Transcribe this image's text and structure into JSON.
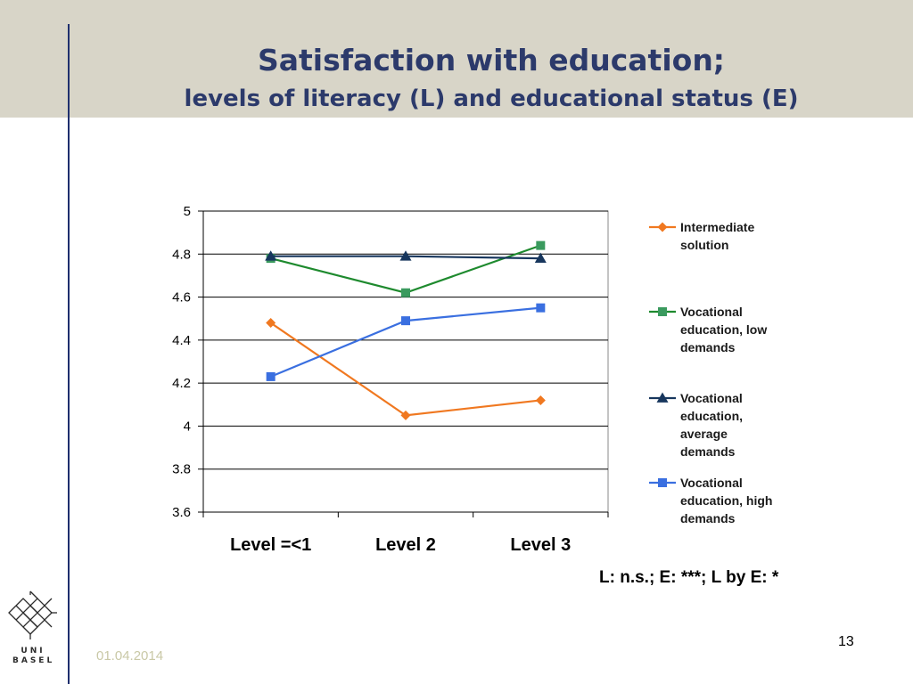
{
  "slide": {
    "title": "Satisfaction with education;",
    "subtitle": "levels of literacy (L) and educational status (E)",
    "stats_note": "L: n.s.; E: ***; L by E: *",
    "date": "01.04.2014",
    "page_number": "13",
    "logo": {
      "line1": "UNI",
      "line2": "BASEL"
    }
  },
  "colors": {
    "header_band": "#d8d5c8",
    "title": "#2c3a6b",
    "rule": "#1f2f6e"
  },
  "chart_data": {
    "type": "line",
    "categories": [
      "Level =<1",
      "Level 2",
      "Level 3"
    ],
    "ylim": [
      3.6,
      5
    ],
    "yticks": [
      3.6,
      3.8,
      4,
      4.2,
      4.4,
      4.6,
      4.8,
      5
    ],
    "ytick_labels": [
      "3.6",
      "3.8",
      "4",
      "4.2",
      "4.4",
      "4.6",
      "4.8",
      "5"
    ],
    "grid": true,
    "legend_position": "right",
    "series": [
      {
        "name": "Intermediate solution",
        "legend_lines": [
          "Intermediate",
          "solution"
        ],
        "values": [
          4.48,
          4.05,
          4.12
        ],
        "color": "#f07820",
        "marker": "diamond"
      },
      {
        "name": "Vocational education, low demands",
        "legend_lines": [
          "Vocational",
          "education, low",
          "demands"
        ],
        "values": [
          4.78,
          4.62,
          4.84
        ],
        "color": "#1e8a2e",
        "marker": "square",
        "marker_color": "#3a9a5e"
      },
      {
        "name": "Vocational education, average demands",
        "legend_lines": [
          "Vocational",
          "education,",
          "average",
          "demands"
        ],
        "values": [
          4.79,
          4.79,
          4.78
        ],
        "color": "#17365d",
        "marker": "triangle"
      },
      {
        "name": "Vocational education, high demands",
        "legend_lines": [
          "Vocational",
          "education, high",
          "demands"
        ],
        "values": [
          4.23,
          4.49,
          4.55
        ],
        "color": "#3a6fe0",
        "marker": "square"
      }
    ]
  }
}
